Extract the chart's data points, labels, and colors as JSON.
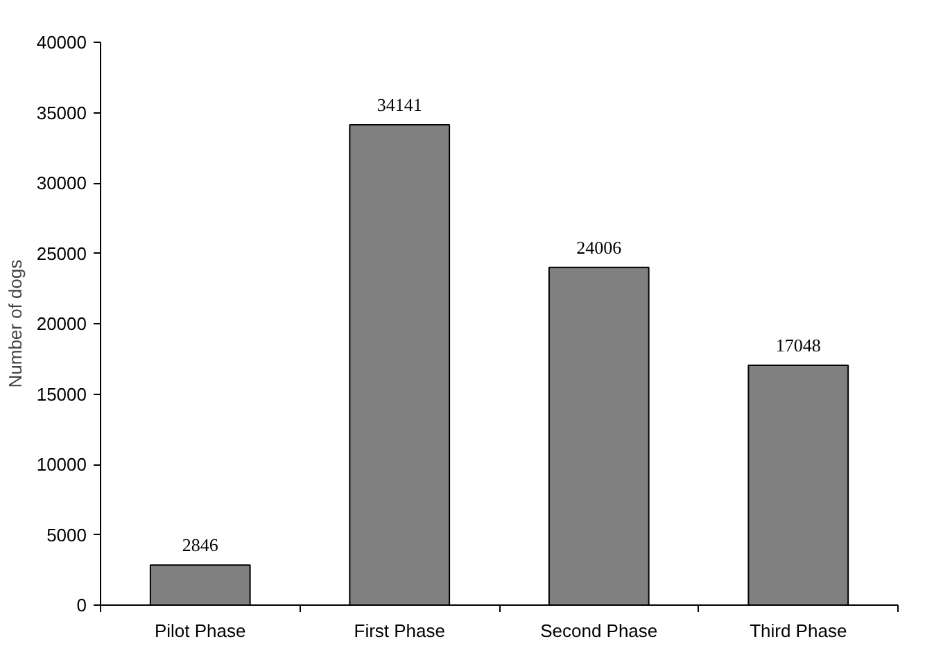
{
  "chart_data": {
    "type": "bar",
    "ylabel": "Number of dogs",
    "categories": [
      "Pilot Phase",
      "First Phase",
      "Second Phase",
      "Third Phase"
    ],
    "values": [
      2846,
      34141,
      24006,
      17048
    ],
    "color": "#808080",
    "ylim": [
      0,
      40000
    ],
    "yticks": [
      0,
      5000,
      10000,
      15000,
      20000,
      25000,
      30000,
      35000,
      40000
    ],
    "grid": false,
    "data_labels": true
  }
}
